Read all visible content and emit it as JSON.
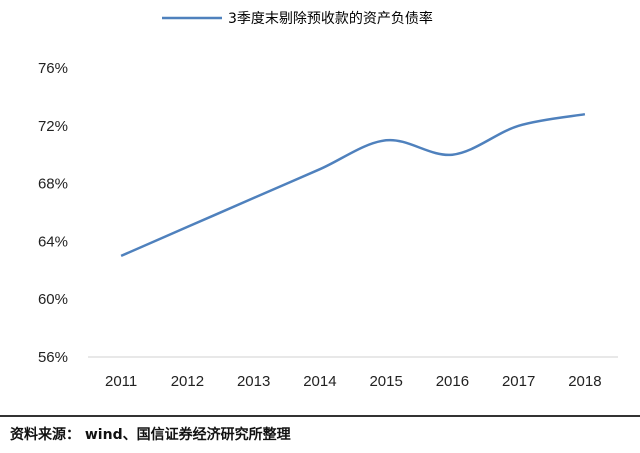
{
  "chart_data": {
    "type": "line",
    "title": "",
    "xlabel": "",
    "ylabel": "",
    "categories": [
      "2011",
      "2012",
      "2013",
      "2014",
      "2015",
      "2016",
      "2017",
      "2018"
    ],
    "series": [
      {
        "name": "3季度末剔除预收款的资产负债率",
        "values": [
          63.0,
          65.0,
          67.0,
          69.0,
          71.0,
          70.0,
          72.0,
          72.8
        ],
        "color": "#4f81bd"
      }
    ],
    "yticks": [
      "56%",
      "60%",
      "64%",
      "68%",
      "72%",
      "76%"
    ],
    "ylim": [
      56,
      76
    ],
    "grid": false,
    "legend_position": "top"
  },
  "footer": {
    "source": "资料来源： wind、国信证券经济研究所整理"
  }
}
